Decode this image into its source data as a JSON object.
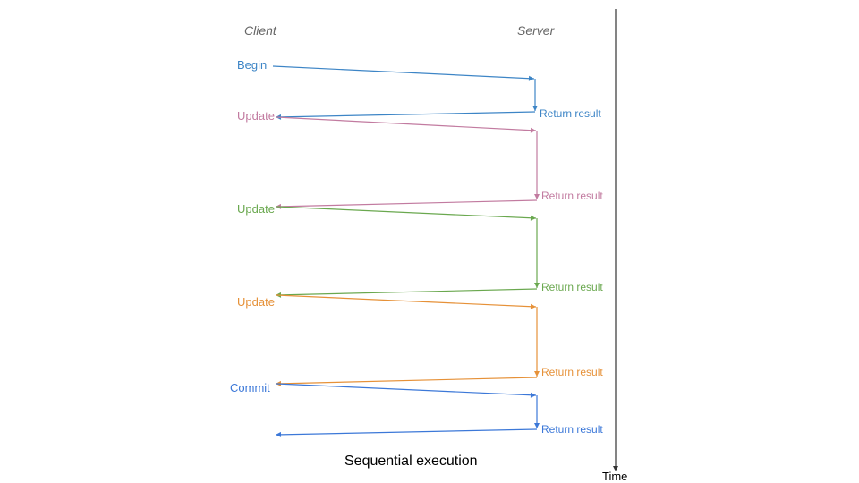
{
  "headers": {
    "client": "Client",
    "server": "Server"
  },
  "caption": "Sequential execution",
  "time_label": "Time",
  "colors": {
    "begin": "#3d85c6",
    "update1": "#c27ba0",
    "update2": "#6aa84f",
    "update3": "#e69138",
    "commit": "#3c78d8",
    "axis": "#333333"
  },
  "steps": [
    {
      "label": "Begin",
      "result": "Return result",
      "color": "#3d85c6"
    },
    {
      "label": "Update",
      "result": "Return result",
      "color": "#c27ba0"
    },
    {
      "label": "Update",
      "result": "Return result",
      "color": "#6aa84f"
    },
    {
      "label": "Update",
      "result": "Return result",
      "color": "#e69138"
    },
    {
      "label": "Commit",
      "result": "Return result",
      "color": "#3c78d8"
    }
  ]
}
